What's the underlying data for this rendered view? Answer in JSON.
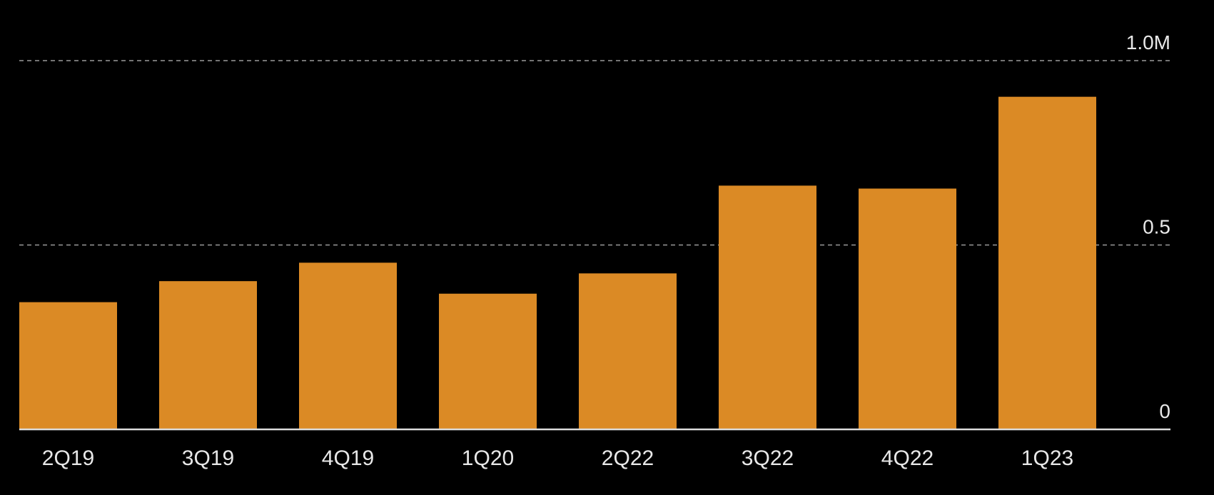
{
  "chart_data": {
    "type": "bar",
    "title": "",
    "xlabel": "",
    "ylabel": "",
    "categories": [
      "2Q19",
      "3Q19",
      "4Q19",
      "1Q20",
      "2Q22",
      "3Q22",
      "4Q22",
      "1Q23"
    ],
    "values": [
      0.345,
      0.402,
      0.452,
      0.368,
      0.423,
      0.661,
      0.653,
      0.902
    ],
    "unit": "M",
    "ylim": [
      0,
      1.0
    ],
    "yticks": [
      0,
      0.5,
      1.0
    ],
    "ytick_labels": [
      "0",
      "0.5",
      "1.0M"
    ],
    "grid": true,
    "bar_color": "#db8a25",
    "background": "#000000"
  }
}
